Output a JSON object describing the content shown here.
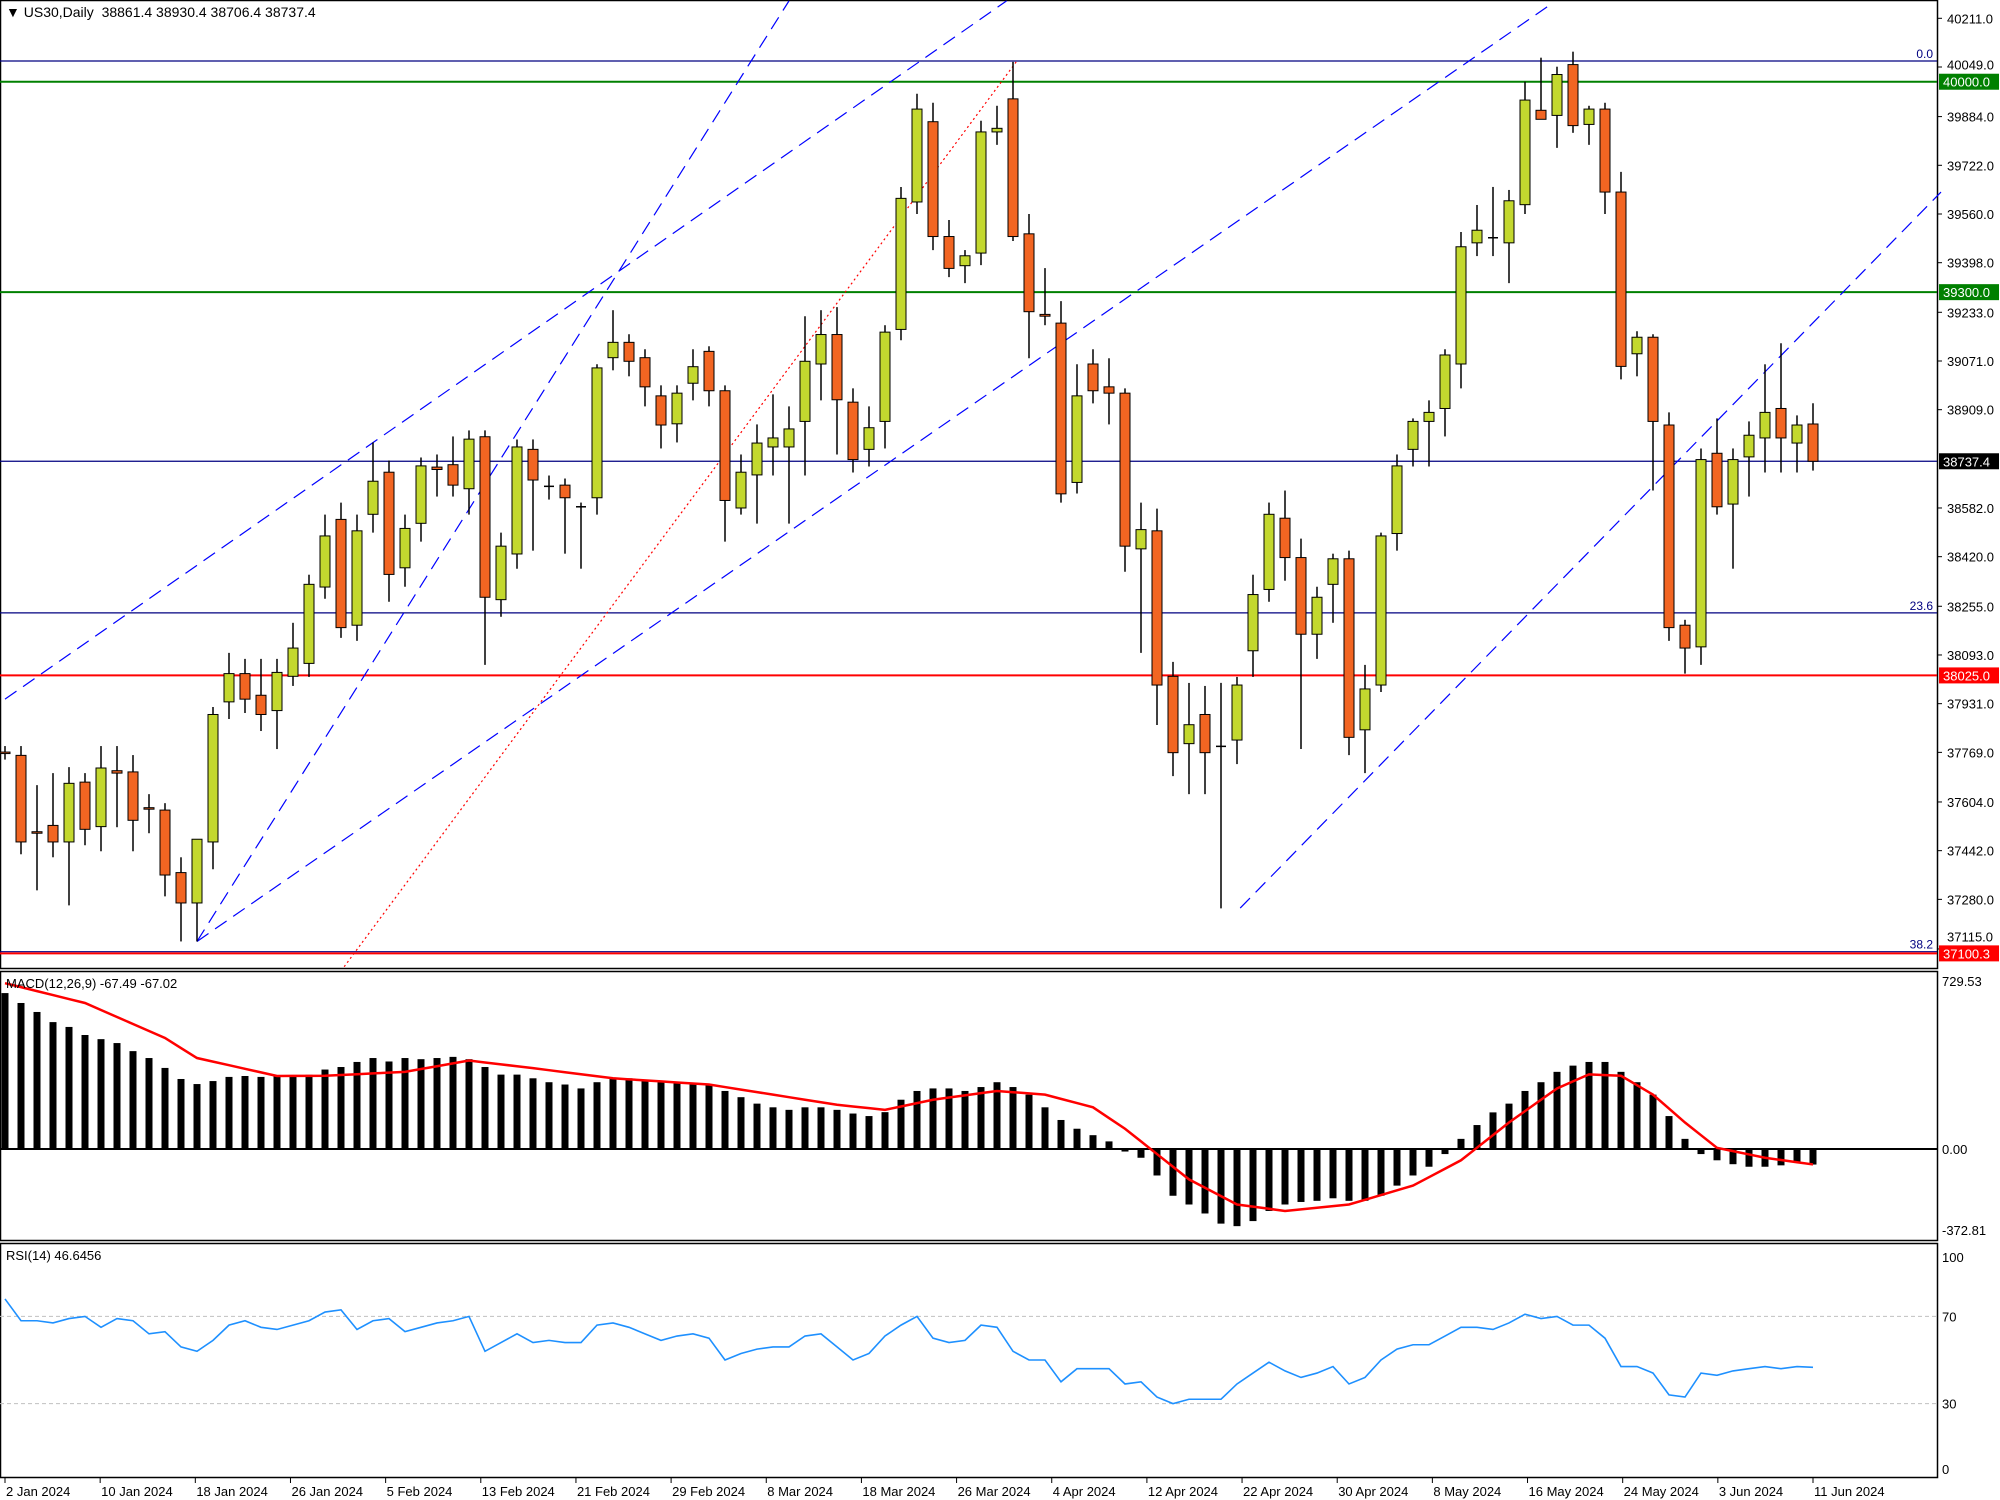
{
  "header": {
    "symbol": "US30,Daily",
    "ohlc": "38861.4 38930.4 38706.4 38737.4"
  },
  "colors": {
    "bull": "#c3d82f",
    "bear": "#f26522",
    "level_green": "#008000",
    "level_red": "#ff0000",
    "fib_blue": "#000080",
    "trend_blue": "#0000ff",
    "rsi_line": "#1e90ff",
    "macd_signal": "#ff0000"
  },
  "price_axis": {
    "ticks": [
      "40211.0",
      "40049.0",
      "39884.0",
      "39722.0",
      "39560.0",
      "39398.0",
      "39233.0",
      "39071.0",
      "38909.0",
      "38582.0",
      "38420.0",
      "38255.0",
      "38093.0",
      "37931.0",
      "37769.0",
      "37604.0",
      "37442.0",
      "37280.0",
      "37115.0"
    ],
    "tags": [
      {
        "label": "40000.0",
        "price": 40000,
        "color": "#008000"
      },
      {
        "label": "39300.0",
        "price": 39300,
        "color": "#008000"
      },
      {
        "label": "38737.4",
        "price": 38737.4,
        "color": "#000000"
      },
      {
        "label": "38025.0",
        "price": 38025,
        "color": "#ff0000"
      },
      {
        "label": "37100.3",
        "price": 37100.3,
        "color": "#ff0000"
      }
    ]
  },
  "levels": [
    {
      "price": 40069,
      "color": "#000080",
      "label": "0.0"
    },
    {
      "price": 40000,
      "color": "#008000",
      "label": ""
    },
    {
      "price": 39300,
      "color": "#008000",
      "label": ""
    },
    {
      "price": 38737.4,
      "color": "#000080",
      "label": ""
    },
    {
      "price": 38233,
      "color": "#000080",
      "label": "23.6"
    },
    {
      "price": 38025,
      "color": "#ff0000",
      "label": ""
    },
    {
      "price": 37106,
      "color": "#000080",
      "label": "38.2"
    },
    {
      "price": 37100.3,
      "color": "#ff0000",
      "label": ""
    }
  ],
  "trendlines": [
    {
      "from": [
        0,
        37946
      ],
      "to": [
        62.6,
        40269
      ],
      "color": "#0000ff",
      "style": "dashed"
    },
    {
      "from": [
        12,
        37140
      ],
      "to": [
        96.6,
        40257
      ],
      "color": "#0000ff",
      "style": "dashed"
    },
    {
      "from": [
        12,
        37140
      ],
      "to": [
        49,
        40269
      ],
      "color": "#0000ff",
      "style": "dashed"
    },
    {
      "from": [
        77.2,
        37251
      ],
      "to": [
        121,
        39633
      ],
      "color": "#0000ff",
      "style": "dashed"
    },
    {
      "from": [
        21.2,
        37056
      ],
      "to": [
        63.2,
        40066
      ],
      "color": "#ff0000",
      "style": "dotted"
    }
  ],
  "candles": [
    [
      37770,
      37790,
      37745,
      37765
    ],
    [
      37759,
      37790,
      37430,
      37471
    ],
    [
      37505,
      37660,
      37310,
      37500
    ],
    [
      37526,
      37700,
      37420,
      37471
    ],
    [
      37471,
      37720,
      37260,
      37666
    ],
    [
      37670,
      37700,
      37460,
      37513
    ],
    [
      37522,
      37790,
      37440,
      37717
    ],
    [
      37708,
      37790,
      37520,
      37700
    ],
    [
      37704,
      37760,
      37440,
      37543
    ],
    [
      37585,
      37630,
      37500,
      37580
    ],
    [
      37577,
      37600,
      37290,
      37361
    ],
    [
      37369,
      37420,
      37140,
      37268
    ],
    [
      37268,
      37480,
      37140,
      37480
    ],
    [
      37471,
      37920,
      37380,
      37895
    ],
    [
      37937,
      38100,
      37880,
      38031
    ],
    [
      38031,
      38080,
      37900,
      37946
    ],
    [
      37959,
      38080,
      37840,
      37895
    ],
    [
      37908,
      38080,
      37780,
      38035
    ],
    [
      38022,
      38200,
      37990,
      38116
    ],
    [
      38065,
      38360,
      38020,
      38328
    ],
    [
      38319,
      38560,
      38280,
      38489
    ],
    [
      38544,
      38600,
      38150,
      38184
    ],
    [
      38192,
      38560,
      38140,
      38506
    ],
    [
      38561,
      38800,
      38500,
      38671
    ],
    [
      38701,
      38740,
      38270,
      38361
    ],
    [
      38383,
      38560,
      38320,
      38514
    ],
    [
      38531,
      38750,
      38470,
      38722
    ],
    [
      38718,
      38760,
      38620,
      38710
    ],
    [
      38726,
      38820,
      38620,
      38658
    ],
    [
      38646,
      38840,
      38560,
      38811
    ],
    [
      38819,
      38840,
      38060,
      38285
    ],
    [
      38277,
      38500,
      38220,
      38455
    ],
    [
      38429,
      38810,
      38380,
      38785
    ],
    [
      38777,
      38810,
      38440,
      38675
    ],
    [
      38654,
      38690,
      38610,
      38650
    ],
    [
      38658,
      38680,
      38430,
      38616
    ],
    [
      38586,
      38600,
      38380,
      38582
    ],
    [
      38616,
      39060,
      38560,
      39048
    ],
    [
      39082,
      39240,
      39040,
      39133
    ],
    [
      39133,
      39160,
      39020,
      39070
    ],
    [
      39082,
      39110,
      38920,
      38985
    ],
    [
      38955,
      38990,
      38780,
      38858
    ],
    [
      38862,
      38990,
      38800,
      38964
    ],
    [
      38997,
      39110,
      38940,
      39052
    ],
    [
      39103,
      39120,
      38920,
      38972
    ],
    [
      38972,
      38990,
      38470,
      38607
    ],
    [
      38582,
      38760,
      38560,
      38701
    ],
    [
      38692,
      38860,
      38530,
      38798
    ],
    [
      38785,
      38960,
      38690,
      38815
    ],
    [
      38785,
      38920,
      38530,
      38845
    ],
    [
      38870,
      39220,
      38690,
      39070
    ],
    [
      39061,
      39240,
      38940,
      39159
    ],
    [
      39159,
      39250,
      38760,
      38942
    ],
    [
      38934,
      38980,
      38700,
      38743
    ],
    [
      38777,
      38920,
      38720,
      38849
    ],
    [
      38870,
      39190,
      38780,
      39167
    ],
    [
      39176,
      39650,
      39140,
      39612
    ],
    [
      39600,
      39960,
      39560,
      39909
    ],
    [
      39867,
      39930,
      39440,
      39485
    ],
    [
      39485,
      39540,
      39350,
      39379
    ],
    [
      39388,
      39440,
      39330,
      39421
    ],
    [
      39430,
      39870,
      39390,
      39833
    ],
    [
      39833,
      39920,
      39790,
      39845
    ],
    [
      39943,
      40066,
      39470,
      39485
    ],
    [
      39494,
      39560,
      39080,
      39235
    ],
    [
      39226,
      39380,
      39190,
      39220
    ],
    [
      39197,
      39270,
      38600,
      38629
    ],
    [
      38667,
      39060,
      38630,
      38955
    ],
    [
      39061,
      39110,
      38930,
      38972
    ],
    [
      38985,
      39080,
      38860,
      38964
    ],
    [
      38964,
      38980,
      38370,
      38455
    ],
    [
      38446,
      38600,
      38100,
      38510
    ],
    [
      38506,
      38580,
      37860,
      37993
    ],
    [
      38022,
      38070,
      37690,
      37768
    ],
    [
      37798,
      38000,
      37630,
      37861
    ],
    [
      37895,
      37990,
      37630,
      37768
    ],
    [
      37789,
      38000,
      37250,
      37785
    ],
    [
      37810,
      38020,
      37730,
      37993
    ],
    [
      38107,
      38360,
      38020,
      38294
    ],
    [
      38311,
      38600,
      38270,
      38561
    ],
    [
      38548,
      38640,
      38340,
      38417
    ],
    [
      38417,
      38480,
      37780,
      38162
    ],
    [
      38162,
      38320,
      38080,
      38285
    ],
    [
      38328,
      38430,
      38200,
      38413
    ],
    [
      38413,
      38440,
      37760,
      37819
    ],
    [
      37844,
      38060,
      37700,
      37980
    ],
    [
      37993,
      38500,
      37970,
      38489
    ],
    [
      38497,
      38760,
      38440,
      38722
    ],
    [
      38777,
      38880,
      38720,
      38870
    ],
    [
      38870,
      38940,
      38720,
      38900
    ],
    [
      38913,
      39110,
      38820,
      39091
    ],
    [
      39061,
      39500,
      38980,
      39451
    ],
    [
      39464,
      39590,
      39420,
      39506
    ],
    [
      39481,
      39650,
      39420,
      39478
    ],
    [
      39464,
      39640,
      39330,
      39604
    ],
    [
      39591,
      40000,
      39560,
      39939
    ],
    [
      39905,
      40080,
      39880,
      39875
    ],
    [
      39888,
      40050,
      39780,
      40024
    ],
    [
      40057,
      40100,
      39830,
      39854
    ],
    [
      39858,
      39920,
      39790,
      39909
    ],
    [
      39909,
      39930,
      39560,
      39633
    ],
    [
      39633,
      39700,
      39010,
      39053
    ],
    [
      39095,
      39170,
      39020,
      39150
    ],
    [
      39150,
      39160,
      38640,
      38870
    ],
    [
      38858,
      38900,
      38140,
      38184
    ],
    [
      38192,
      38210,
      38031,
      38116
    ],
    [
      38120,
      38780,
      38060,
      38743
    ],
    [
      38764,
      38880,
      38560,
      38586
    ],
    [
      38595,
      38780,
      38380,
      38743
    ],
    [
      38752,
      38870,
      38620,
      38824
    ],
    [
      38815,
      39060,
      38700,
      38900
    ],
    [
      38913,
      39130,
      38700,
      38815
    ],
    [
      38798,
      38890,
      38700,
      38858
    ],
    [
      38861.4,
      38930.4,
      38706.4,
      38737.4
    ]
  ],
  "macd": {
    "label": "MACD(12,26,9) -67.49 -67.02",
    "axis": {
      "top": "729.53",
      "zero": "0.00",
      "bottom": "-372.81"
    },
    "histogram": [
      677,
      634,
      595,
      551,
      530,
      495,
      477,
      460,
      425,
      395,
      352,
      304,
      282,
      295,
      313,
      317,
      313,
      321,
      318,
      322,
      345,
      356,
      378,
      395,
      380,
      395,
      390,
      395,
      400,
      390,
      356,
      323,
      323,
      307,
      290,
      280,
      263,
      290,
      307,
      307,
      300,
      290,
      290,
      280,
      280,
      252,
      225,
      197,
      181,
      170,
      181,
      181,
      170,
      154,
      143,
      160,
      214,
      252,
      263,
      263,
      252,
      269,
      290,
      269,
      236,
      181,
      126,
      88,
      60,
      33,
      -11,
      -38,
      -115,
      -203,
      -241,
      -280,
      -324,
      -335,
      -313,
      -269,
      -241,
      -230,
      -225,
      -214,
      -225,
      -225,
      -203,
      -159,
      -115,
      -77,
      -22,
      44,
      104,
      159,
      197,
      252,
      290,
      335,
      362,
      378,
      378,
      335,
      290,
      236,
      143,
      44,
      -22,
      -49,
      -66,
      -77,
      -77,
      -71,
      -60,
      -67.49
    ],
    "signal": [
      [
        0,
        720
      ],
      [
        5,
        634
      ],
      [
        10,
        482
      ],
      [
        12,
        395
      ],
      [
        17,
        317
      ],
      [
        20,
        318
      ],
      [
        25,
        335
      ],
      [
        29,
        384
      ],
      [
        33,
        351
      ],
      [
        38,
        307
      ],
      [
        44,
        280
      ],
      [
        48,
        236
      ],
      [
        52,
        192
      ],
      [
        55,
        170
      ],
      [
        58,
        214
      ],
      [
        62,
        252
      ],
      [
        65,
        236
      ],
      [
        68,
        181
      ],
      [
        70,
        88
      ],
      [
        72,
        -22
      ],
      [
        74,
        -132
      ],
      [
        77,
        -241
      ],
      [
        80,
        -269
      ],
      [
        84,
        -241
      ],
      [
        88,
        -159
      ],
      [
        91,
        -49
      ],
      [
        94,
        115
      ],
      [
        97,
        263
      ],
      [
        99,
        324
      ],
      [
        101,
        318
      ],
      [
        103,
        236
      ],
      [
        105,
        115
      ],
      [
        107,
        5
      ],
      [
        110,
        -38
      ],
      [
        113,
        -67.02
      ]
    ]
  },
  "rsi": {
    "label": "RSI(14) 46.6456",
    "axis": [
      "100",
      "70",
      "30",
      "0"
    ],
    "values": [
      78,
      68,
      68,
      67,
      69,
      70,
      65,
      69,
      68,
      62,
      63,
      56,
      54,
      59,
      66,
      68,
      65,
      64,
      66,
      68,
      72,
      73,
      64,
      68,
      69,
      63,
      65,
      67,
      68,
      70,
      54,
      58,
      62,
      58,
      59,
      58,
      58,
      66,
      67,
      65,
      62,
      59,
      61,
      62,
      60,
      50,
      53,
      55,
      56,
      56,
      61,
      62,
      56,
      50,
      53,
      61,
      66,
      70,
      60,
      58,
      59,
      66,
      65,
      54,
      50,
      50,
      40,
      46,
      46,
      46,
      39,
      40,
      33,
      30,
      32,
      32,
      32,
      39,
      44,
      49,
      45,
      42,
      44,
      47,
      39,
      42,
      50,
      55,
      57,
      57,
      61,
      65,
      65,
      64,
      67,
      71,
      69,
      70,
      66,
      66,
      60,
      47,
      47,
      44,
      34,
      33,
      44,
      43,
      45,
      46,
      47,
      46,
      47,
      46.6456
    ]
  },
  "time_axis": [
    "2 Jan 2024",
    "10 Jan 2024",
    "18 Jan 2024",
    "26 Jan 2024",
    "5 Feb 2024",
    "13 Feb 2024",
    "21 Feb 2024",
    "29 Feb 2024",
    "8 Mar 2024",
    "18 Mar 2024",
    "26 Mar 2024",
    "4 Apr 2024",
    "12 Apr 2024",
    "22 Apr 2024",
    "30 Apr 2024",
    "8 May 2024",
    "16 May 2024",
    "24 May 2024",
    "3 Jun 2024",
    "11 Jun 2024"
  ]
}
